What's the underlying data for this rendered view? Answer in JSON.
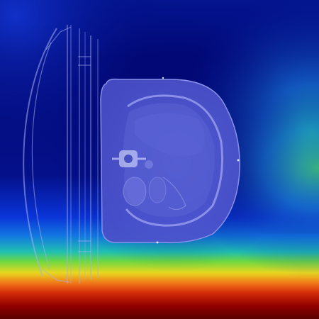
{
  "image": {
    "modality": "axial-ct-slice",
    "orientation": "rotated-90",
    "overlay": "saliency-heatmap",
    "colormap": "jet"
  },
  "heatmap_colors": {
    "low": "#00007a",
    "low_mid": "#0a2fd0",
    "mid": "#12a0c8",
    "mid_high": "#3fd060",
    "high": "#e8e020",
    "peak": "#e03010",
    "max": "#6a0000"
  },
  "heatmap_regions": [
    {
      "region": "bottom-band",
      "intensity": 1.0
    },
    {
      "region": "right-edge",
      "intensity": 0.5
    },
    {
      "region": "center-body",
      "intensity": 0.1
    },
    {
      "region": "top-left",
      "intensity": 0.2
    }
  ]
}
